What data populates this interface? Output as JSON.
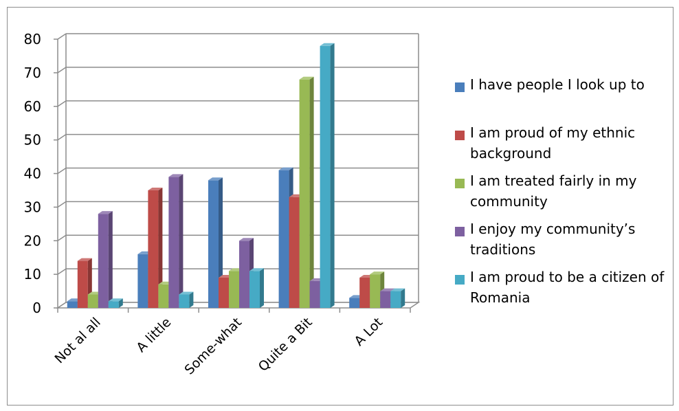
{
  "chart_data": {
    "type": "bar",
    "title": "",
    "xlabel": "",
    "ylabel": "",
    "ylim": [
      0,
      80
    ],
    "yticks": [
      "0",
      "10",
      "20",
      "30",
      "40",
      "50",
      "60",
      "70",
      "80"
    ],
    "grid": true,
    "legend_position": "right",
    "categories": [
      "Not al all",
      "A little",
      "Some-what",
      "Quite a Bit",
      "A Lot"
    ],
    "series": [
      {
        "name": "I have people I look up to",
        "color": "#4A7EBB",
        "values": [
          2,
          16,
          38,
          41,
          3
        ]
      },
      {
        "name": "I am proud of my ethnic background",
        "color": "#BE4B48",
        "values": [
          14,
          35,
          9,
          33,
          9
        ]
      },
      {
        "name": "I am treated fairly in my community",
        "color": "#98B954",
        "values": [
          4,
          7,
          11,
          68,
          10
        ]
      },
      {
        "name": "I enjoy my community’s traditions",
        "color": "#7D60A0",
        "values": [
          28,
          39,
          20,
          8,
          5
        ]
      },
      {
        "name": "I am proud to be a citizen of Romania",
        "color": "#46AAC5",
        "values": [
          2,
          4,
          11,
          78,
          5
        ]
      }
    ]
  }
}
